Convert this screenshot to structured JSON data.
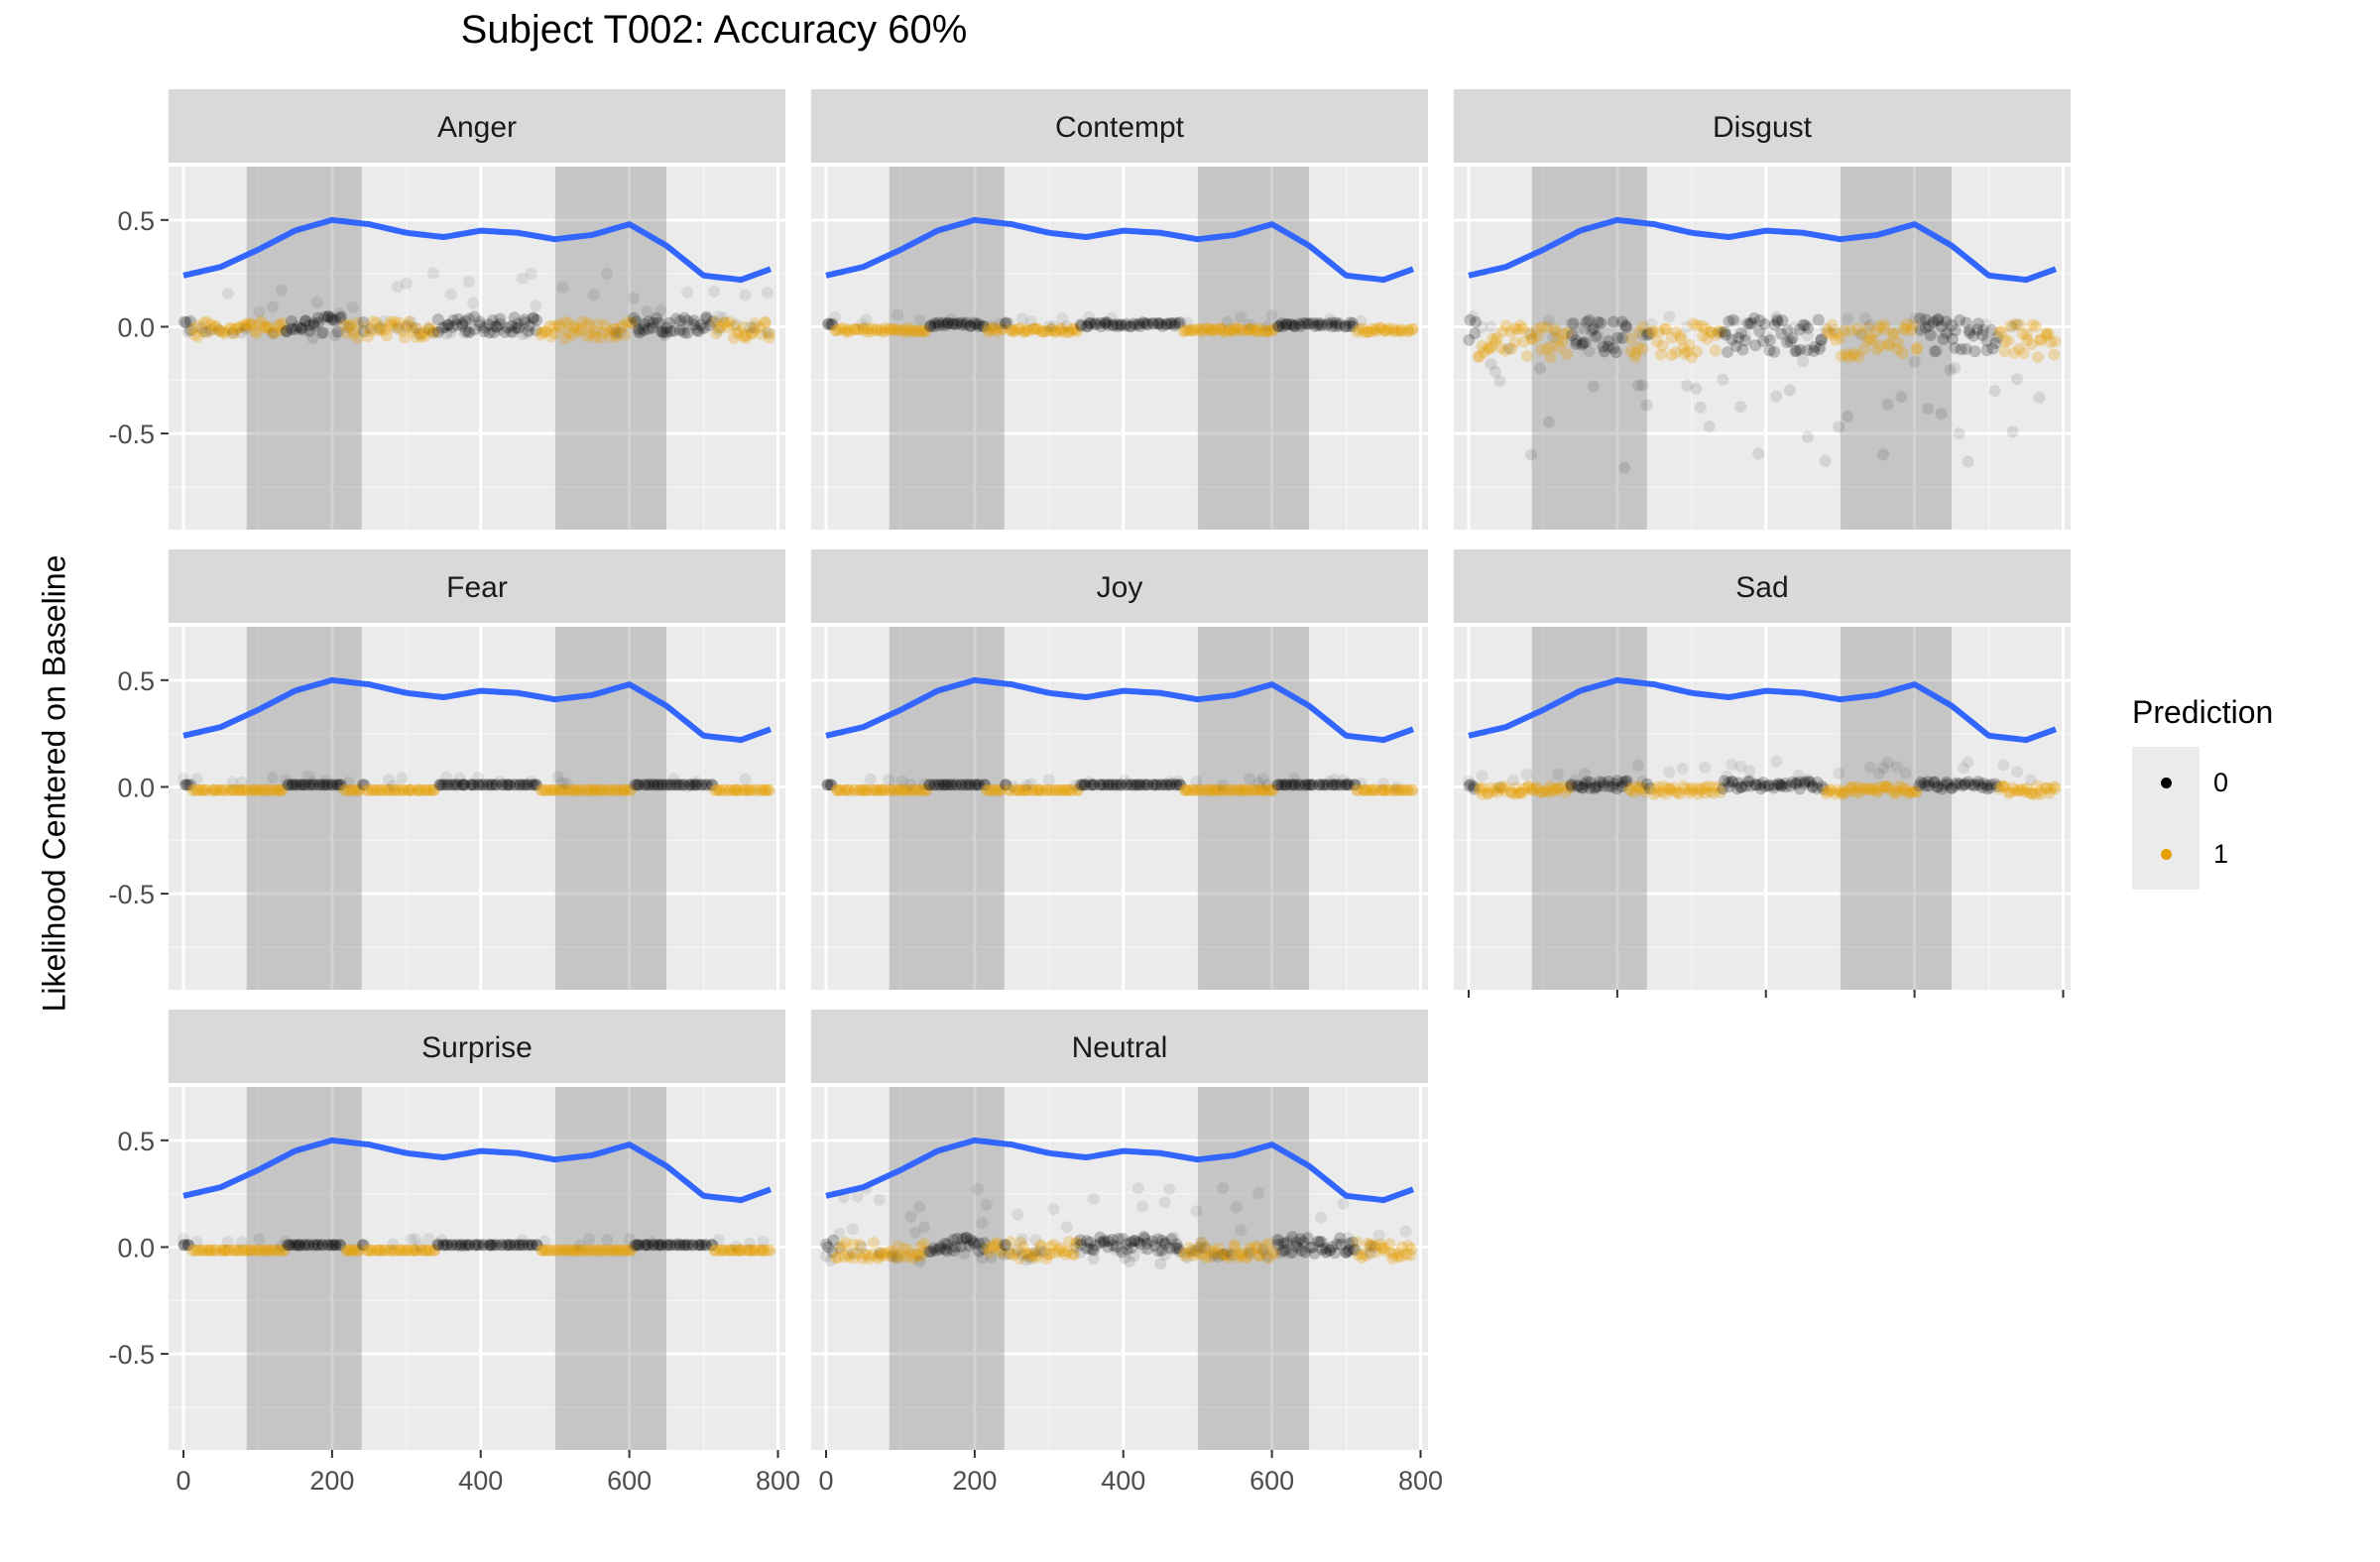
{
  "title": "Subject T002: Accuracy 60%",
  "ylabel": "Likelihood Centered on Baseline",
  "legend": {
    "title": "Prediction",
    "items": [
      {
        "label": "0",
        "color": "#000000"
      },
      {
        "label": "1",
        "color": "#E69F00"
      }
    ]
  },
  "chart_data": {
    "type": "scatter",
    "layout": "facet_wrap",
    "panels": [
      "Anger",
      "Contempt",
      "Disgust",
      "Fear",
      "Joy",
      "Sad",
      "Surprise",
      "Neutral"
    ],
    "xlim": [
      -20,
      810
    ],
    "ylim": [
      -0.95,
      0.75
    ],
    "x_ticks": [
      0,
      200,
      400,
      600,
      800
    ],
    "x_tick_labels": [
      "0",
      "200",
      "400",
      "600",
      "800"
    ],
    "y_ticks": [
      -0.5,
      0.0,
      0.5
    ],
    "y_tick_labels": [
      "-0.5",
      "0.0",
      "0.5"
    ],
    "shaded_intervals": [
      [
        85,
        240
      ],
      [
        500,
        650
      ]
    ],
    "smooth_line": {
      "color": "#3366FF",
      "x": [
        0,
        50,
        100,
        150,
        200,
        250,
        300,
        350,
        400,
        450,
        500,
        550,
        600,
        650,
        700,
        750,
        790
      ],
      "y": [
        0.24,
        0.28,
        0.36,
        0.45,
        0.5,
        0.48,
        0.44,
        0.42,
        0.45,
        0.44,
        0.41,
        0.43,
        0.48,
        0.38,
        0.24,
        0.22,
        0.27
      ]
    },
    "point_series": [
      {
        "name": "0",
        "color": "#000000"
      },
      {
        "name": "1",
        "color": "#E69F00"
      }
    ],
    "panel_profiles": {
      "Anger": {
        "center": 0.0,
        "spread": 0.04,
        "spike": 0.28,
        "low": -0.06
      },
      "Contempt": {
        "center": 0.0,
        "spread": 0.01,
        "spike": 0.06,
        "low": -0.01
      },
      "Disgust": {
        "center": -0.05,
        "spread": 0.08,
        "spike": 0.1,
        "low": -0.85
      },
      "Fear": {
        "center": 0.0,
        "spread": 0.0,
        "spike": 0.05,
        "low": 0.0
      },
      "Joy": {
        "center": 0.0,
        "spread": 0.0,
        "spike": 0.04,
        "low": 0.0
      },
      "Sad": {
        "center": 0.0,
        "spread": 0.02,
        "spike": 0.12,
        "low": -0.01
      },
      "Surprise": {
        "center": 0.0,
        "spread": 0.0,
        "spike": 0.04,
        "low": 0.0
      },
      "Neutral": {
        "center": 0.0,
        "spread": 0.04,
        "spike": 0.28,
        "low": -0.08
      }
    }
  }
}
